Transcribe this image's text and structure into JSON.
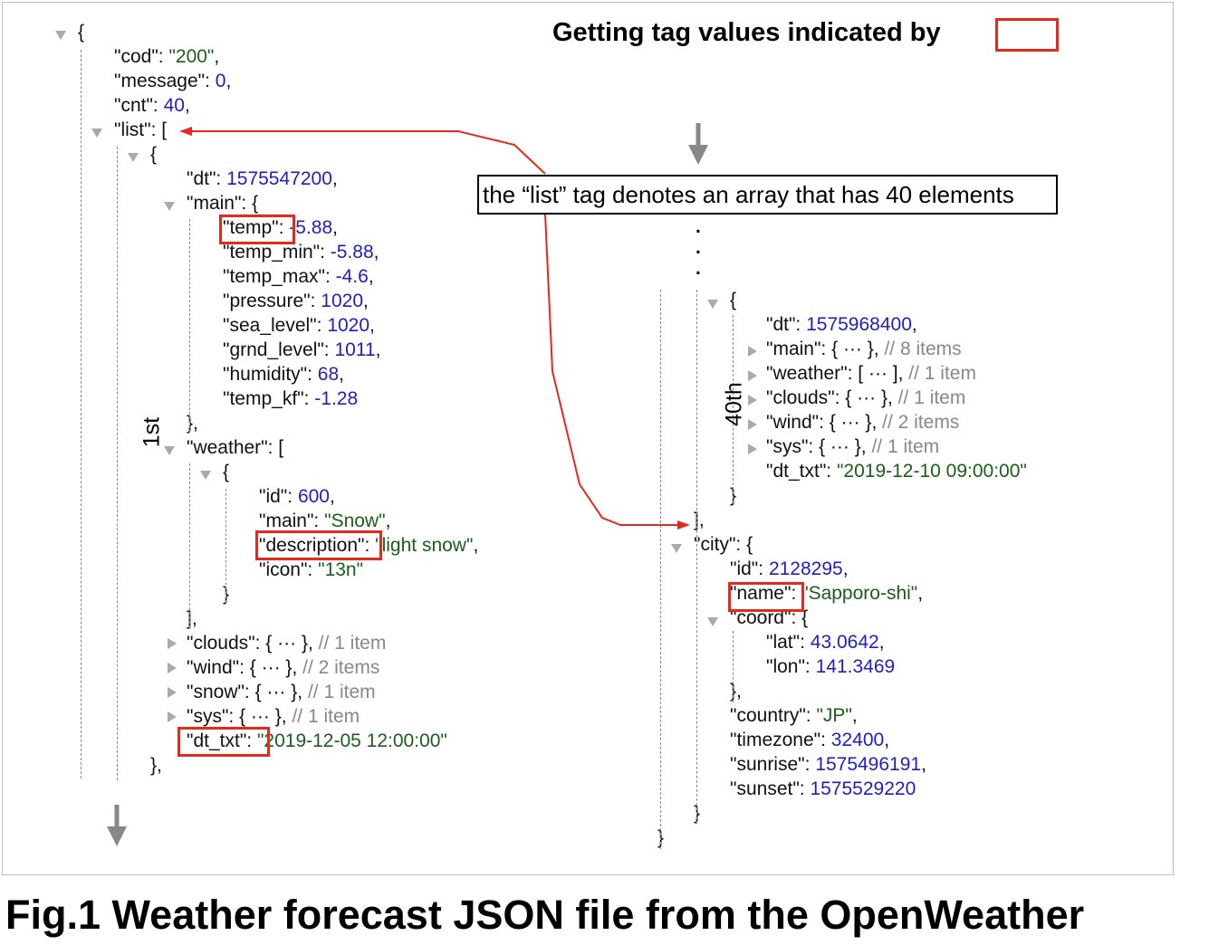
{
  "heading": "Getting tag values indicated by",
  "note": "the “list” tag denotes an array that has 40 elements",
  "caption": "Fig.1 Weather forecast JSON file from the OpenWeather",
  "labels": {
    "first": "1st",
    "fortieth": "40th"
  },
  "ellipsis_dot": ".",
  "colors": {
    "key": "#111111",
    "string": "#1a5e1a",
    "number": "#1f1fbf",
    "comment": "#888888",
    "highlight": "#e8281a",
    "arrow": "#888888"
  },
  "left_lines": [
    {
      "k": "{"
    },
    {
      "k": "\"cod\": ",
      "s": "\"200\"",
      "p": ","
    },
    {
      "k": "\"message\": ",
      "n": "0",
      "p": ","
    },
    {
      "k": "\"cnt\": ",
      "n": "40",
      "p": ","
    },
    {
      "k": "\"list\": ["
    },
    {
      "k": "{"
    },
    {
      "k": "\"dt\": ",
      "n": "1575547200",
      "p": ","
    },
    {
      "k": "\"main\": {"
    },
    {
      "k": "\"temp\": ",
      "n": "-5.88",
      "p": ","
    },
    {
      "k": "\"temp_min\": ",
      "n": "-5.88",
      "p": ","
    },
    {
      "k": "\"temp_max\": ",
      "n": "-4.6",
      "p": ","
    },
    {
      "k": "\"pressure\": ",
      "n": "1020",
      "p": ","
    },
    {
      "k": "\"sea_level\": ",
      "n": "1020",
      "p": ","
    },
    {
      "k": "\"grnd_level\": ",
      "n": "1011",
      "p": ","
    },
    {
      "k": "\"humidity\": ",
      "n": "68",
      "p": ","
    },
    {
      "k": "\"temp_kf\": ",
      "n": "-1.28"
    },
    {
      "k": "},"
    },
    {
      "k": "\"weather\": ["
    },
    {
      "k": "{"
    },
    {
      "k": "\"id\": ",
      "n": "600",
      "p": ","
    },
    {
      "k": "\"main\": ",
      "s": "\"Snow\"",
      "p": ","
    },
    {
      "k": "\"description\": ",
      "s": "\"light snow\"",
      "p": ","
    },
    {
      "k": "\"icon\": ",
      "s": "\"13n\""
    },
    {
      "k": "}"
    },
    {
      "k": "],"
    },
    {
      "k": "\"clouds\": { ··· }, ",
      "c": "// 1 item"
    },
    {
      "k": "\"wind\": { ··· }, ",
      "c": "// 2 items"
    },
    {
      "k": "\"snow\": { ··· }, ",
      "c": "// 1 item"
    },
    {
      "k": "\"sys\": { ··· }, ",
      "c": "// 1 item"
    },
    {
      "k": "\"dt_txt\": ",
      "s": "\"2019-12-05 12:00:00\""
    },
    {
      "k": "},"
    }
  ],
  "right_lines": [
    {
      "k": "{"
    },
    {
      "k": "\"dt\": ",
      "n": "1575968400",
      "p": ","
    },
    {
      "k": "\"main\": { ··· }, ",
      "c": "// 8 items"
    },
    {
      "k": "\"weather\": [ ··· ], ",
      "c": "// 1 item"
    },
    {
      "k": "\"clouds\": { ··· }, ",
      "c": "// 1 item"
    },
    {
      "k": "\"wind\": { ··· }, ",
      "c": "// 2 items"
    },
    {
      "k": "\"sys\": { ··· }, ",
      "c": "// 1 item"
    },
    {
      "k": "\"dt_txt\": ",
      "s": "\"2019-12-10 09:00:00\""
    },
    {
      "k": "}"
    },
    {
      "k": "],"
    },
    {
      "k": "\"city\": {"
    },
    {
      "k": "\"id\": ",
      "n": "2128295",
      "p": ","
    },
    {
      "k": "\"name\": ",
      "s": "\"Sapporo-shi\"",
      "p": ","
    },
    {
      "k": "\"coord\": {"
    },
    {
      "k": "\"lat\": ",
      "n": "43.0642",
      "p": ","
    },
    {
      "k": "\"lon\": ",
      "n": "141.3469"
    },
    {
      "k": "},"
    },
    {
      "k": "\"country\": ",
      "s": "\"JP\"",
      "p": ","
    },
    {
      "k": "\"timezone\": ",
      "n": "32400",
      "p": ","
    },
    {
      "k": "\"sunrise\": ",
      "n": "1575496191",
      "p": ","
    },
    {
      "k": "\"sunset\": ",
      "n": "1575529220"
    },
    {
      "k": "}"
    },
    {
      "k": "}"
    }
  ]
}
